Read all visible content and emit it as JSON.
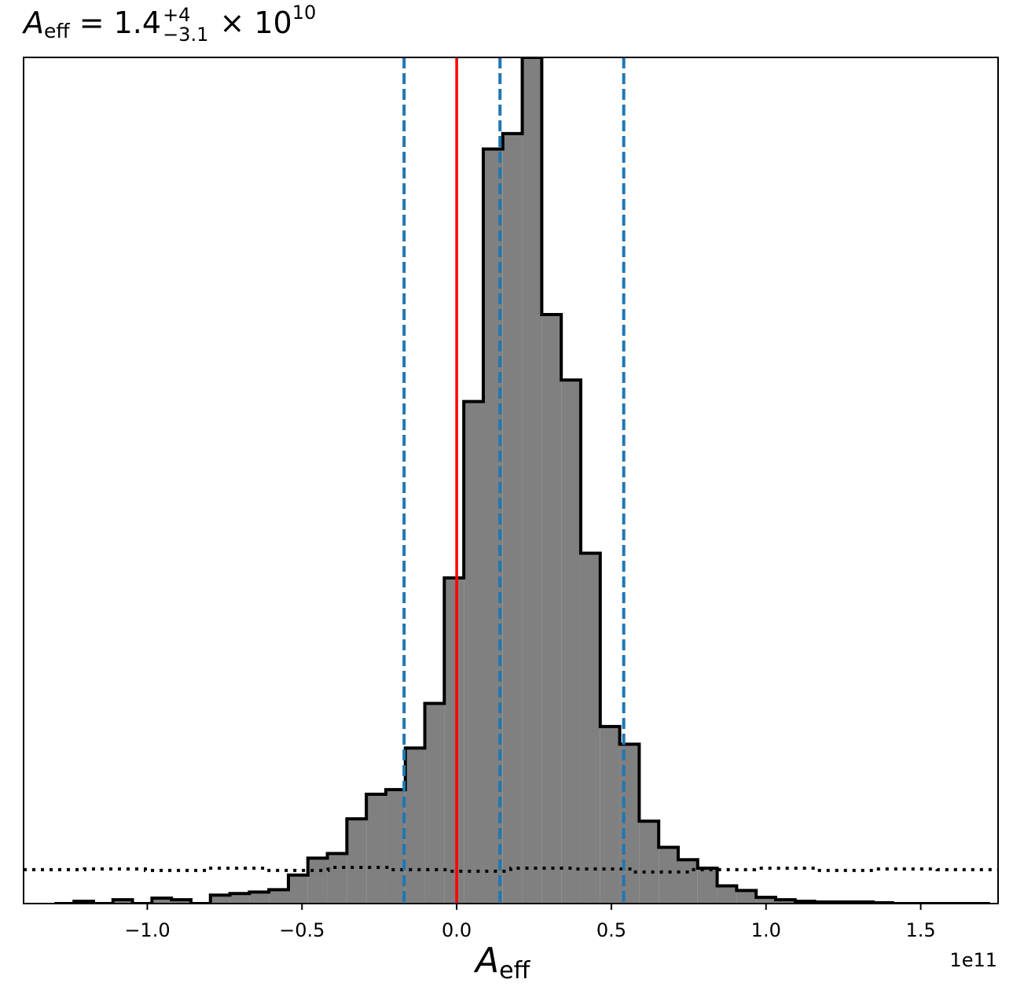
{
  "title": {
    "symbol": "A",
    "symbol_sub": "eff",
    "equals": "= 1.4",
    "upper_err": "+4",
    "lower_err": "−3.1",
    "times": "× 10",
    "exponent": "10"
  },
  "axis": {
    "xlabel_symbol": "A",
    "xlabel_sub": "eff",
    "offset_text": "1e11"
  },
  "colors": {
    "histogram_fill": "#808080",
    "histogram_edge": "#000000",
    "truth_line": "#ff0000",
    "quantile_lines": "#1f77b4",
    "prior_line": "#000000"
  },
  "chart_data": {
    "type": "histogram",
    "x_unit_scale": "1e11",
    "xlim": [
      -1.4,
      1.75
    ],
    "y_ticks_shown": false,
    "xticks": [
      -1.0,
      -0.5,
      0.0,
      0.5,
      1.0,
      1.5
    ],
    "xtick_labels": [
      "−1.0",
      "−0.5",
      "0.0",
      "0.5",
      "1.0",
      "1.5"
    ],
    "bin_edges": [
      -1.3,
      -1.237,
      -1.174,
      -1.111,
      -1.048,
      -0.985,
      -0.922,
      -0.859,
      -0.796,
      -0.733,
      -0.67,
      -0.607,
      -0.544,
      -0.481,
      -0.418,
      -0.355,
      -0.292,
      -0.229,
      -0.166,
      -0.103,
      -0.04,
      0.023,
      0.086,
      0.149,
      0.212,
      0.275,
      0.338,
      0.401,
      0.464,
      0.527,
      0.59,
      0.653,
      0.716,
      0.779,
      0.842,
      0.905,
      0.968,
      1.031,
      1.094,
      1.157,
      1.22,
      1.283,
      1.346,
      1.409,
      1.472,
      1.535,
      1.598,
      1.661,
      1.724
    ],
    "posterior_counts": [
      0.0,
      0.3,
      0.0,
      0.5,
      0.0,
      0.7,
      0.5,
      0.0,
      1.1,
      1.3,
      1.5,
      1.8,
      3.7,
      5.9,
      6.5,
      11.0,
      14.2,
      14.8,
      20.2,
      26.0,
      42.3,
      65.2,
      98.0,
      100.0,
      109.9,
      76.5,
      68.0,
      45.5,
      23.0,
      20.7,
      10.7,
      7.3,
      5.7,
      4.6,
      2.3,
      1.7,
      0.8,
      0.5,
      0.3,
      0.2,
      0.2,
      0.2,
      0.1,
      0.0,
      0.0,
      0.0,
      0.0,
      0.0
    ],
    "prior_level": 4.4,
    "truth_value": 0.0,
    "quantiles": [
      -0.17,
      0.14,
      0.54
    ],
    "series": [
      {
        "style": "filled step"
      },
      {
        "style": "dotted step"
      }
    ]
  }
}
